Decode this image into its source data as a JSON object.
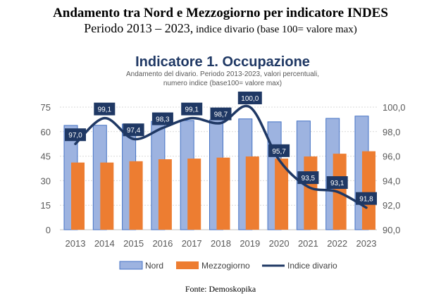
{
  "header": {
    "title": "Andamento tra Nord e Mezzogiorno per indicatore INDES",
    "subtitle_main": "Periodo 2013 – 2023,",
    "subtitle_small": " indice divario (base 100= valore max)"
  },
  "footer": "Fonte: Demoskopika",
  "chart_data": {
    "type": "bar",
    "title": "Indicatore 1. Occupazione",
    "subtitle_lines": [
      "Andamento del divario. Periodo 2013-2023,  valori percentuali,",
      "numero indice (base100= valore max)"
    ],
    "categories": [
      "2013",
      "2014",
      "2015",
      "2016",
      "2017",
      "2018",
      "2019",
      "2020",
      "2021",
      "2022",
      "2023"
    ],
    "series": [
      {
        "name": "Nord",
        "type": "bar",
        "axis": "left",
        "color": "#9db3e0",
        "values": [
          63.8,
          63.9,
          64.6,
          66.3,
          66.8,
          67.2,
          67.8,
          66.0,
          66.5,
          68.1,
          69.5
        ]
      },
      {
        "name": "Mezzogiorno",
        "type": "bar",
        "axis": "left",
        "color": "#ed7d31",
        "values": [
          41.1,
          41.1,
          41.9,
          43.1,
          43.5,
          44.1,
          44.8,
          43.5,
          44.8,
          46.5,
          48.0
        ]
      },
      {
        "name": "Indice divario",
        "type": "line",
        "axis": "right",
        "color": "#1f3864",
        "values": [
          97.0,
          99.1,
          97.4,
          98.3,
          99.1,
          98.7,
          100.0,
          95.7,
          93.5,
          93.1,
          91.8
        ],
        "labels": [
          "97,0",
          "99,1",
          "97,4",
          "98,3",
          "99,1",
          "98,7",
          "100,0",
          "95,7",
          "93,5",
          "93,1",
          "91,8"
        ]
      }
    ],
    "left_axis": {
      "range": [
        0,
        75
      ],
      "ticks": [
        "0",
        "15",
        "30",
        "45",
        "60",
        "75"
      ]
    },
    "right_axis": {
      "range": [
        90,
        100
      ],
      "ticks": [
        "90,0",
        "92,0",
        "94,0",
        "96,0",
        "98,0",
        "100,0"
      ]
    },
    "grid": true,
    "legend_position": "bottom"
  }
}
